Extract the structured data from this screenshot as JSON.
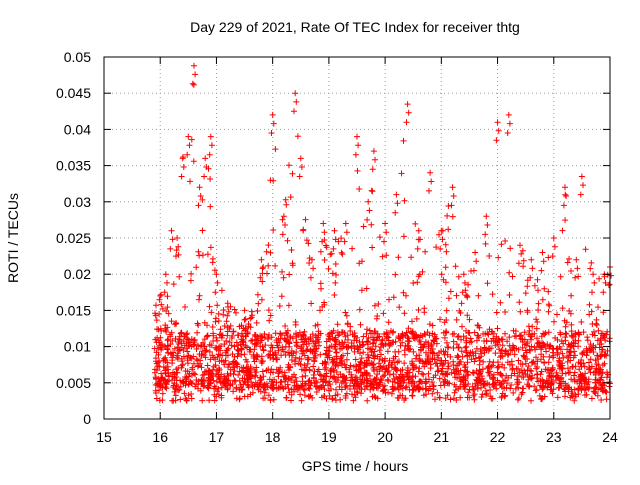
{
  "chart_data": {
    "type": "scatter",
    "title": "Day 229 of 2021, Rate Of TEC Index for receiver thtg",
    "xlabel": "GPS time / hours",
    "ylabel": "ROTI / TECUs",
    "xlim": [
      15,
      24
    ],
    "ylim": [
      0,
      0.05
    ],
    "x_ticks": [
      15,
      16,
      17,
      18,
      19,
      20,
      21,
      22,
      23,
      24
    ],
    "x_tick_labels": [
      "15",
      "16",
      "17",
      "18",
      "19",
      "20",
      "21",
      "22",
      "23",
      "24"
    ],
    "y_ticks": [
      0,
      0.005,
      0.01,
      0.015,
      0.02,
      0.025,
      0.03,
      0.035,
      0.04,
      0.045,
      0.05
    ],
    "y_tick_labels": [
      "0",
      "0.005",
      "0.01",
      "0.015",
      "0.02",
      "0.025",
      "0.03",
      "0.035",
      "0.04",
      "0.045",
      "0.05"
    ],
    "grid": true,
    "marker": "+",
    "color": "#ff0000",
    "series": [
      {
        "name": "ROTI",
        "x_range": [
          15.9,
          24.0
        ],
        "typical_band": [
          0.004,
          0.012
        ],
        "upper_envelope": [
          {
            "x": 16.0,
            "y": 0.017
          },
          {
            "x": 16.1,
            "y": 0.02
          },
          {
            "x": 16.2,
            "y": 0.026
          },
          {
            "x": 16.3,
            "y": 0.025
          },
          {
            "x": 16.4,
            "y": 0.036
          },
          {
            "x": 16.5,
            "y": 0.039
          },
          {
            "x": 16.6,
            "y": 0.0488
          },
          {
            "x": 16.7,
            "y": 0.032
          },
          {
            "x": 16.8,
            "y": 0.036
          },
          {
            "x": 16.9,
            "y": 0.039
          },
          {
            "x": 17.0,
            "y": 0.02
          },
          {
            "x": 17.2,
            "y": 0.016
          },
          {
            "x": 17.5,
            "y": 0.015
          },
          {
            "x": 17.8,
            "y": 0.022
          },
          {
            "x": 18.0,
            "y": 0.042
          },
          {
            "x": 18.2,
            "y": 0.028
          },
          {
            "x": 18.4,
            "y": 0.045
          },
          {
            "x": 18.5,
            "y": 0.036
          },
          {
            "x": 18.7,
            "y": 0.022
          },
          {
            "x": 18.9,
            "y": 0.027
          },
          {
            "x": 19.1,
            "y": 0.026
          },
          {
            "x": 19.3,
            "y": 0.027
          },
          {
            "x": 19.5,
            "y": 0.039
          },
          {
            "x": 19.7,
            "y": 0.03
          },
          {
            "x": 19.8,
            "y": 0.037
          },
          {
            "x": 20.0,
            "y": 0.027
          },
          {
            "x": 20.2,
            "y": 0.031
          },
          {
            "x": 20.4,
            "y": 0.0435
          },
          {
            "x": 20.6,
            "y": 0.026
          },
          {
            "x": 20.8,
            "y": 0.034
          },
          {
            "x": 21.0,
            "y": 0.026
          },
          {
            "x": 21.2,
            "y": 0.032
          },
          {
            "x": 21.4,
            "y": 0.02
          },
          {
            "x": 21.6,
            "y": 0.023
          },
          {
            "x": 21.8,
            "y": 0.028
          },
          {
            "x": 22.0,
            "y": 0.041
          },
          {
            "x": 22.2,
            "y": 0.042
          },
          {
            "x": 22.4,
            "y": 0.024
          },
          {
            "x": 22.6,
            "y": 0.022
          },
          {
            "x": 22.8,
            "y": 0.023
          },
          {
            "x": 23.0,
            "y": 0.025
          },
          {
            "x": 23.2,
            "y": 0.032
          },
          {
            "x": 23.4,
            "y": 0.022
          },
          {
            "x": 23.5,
            "y": 0.0335
          },
          {
            "x": 23.7,
            "y": 0.02
          },
          {
            "x": 23.9,
            "y": 0.02
          },
          {
            "x": 24.0,
            "y": 0.021
          }
        ]
      }
    ]
  }
}
